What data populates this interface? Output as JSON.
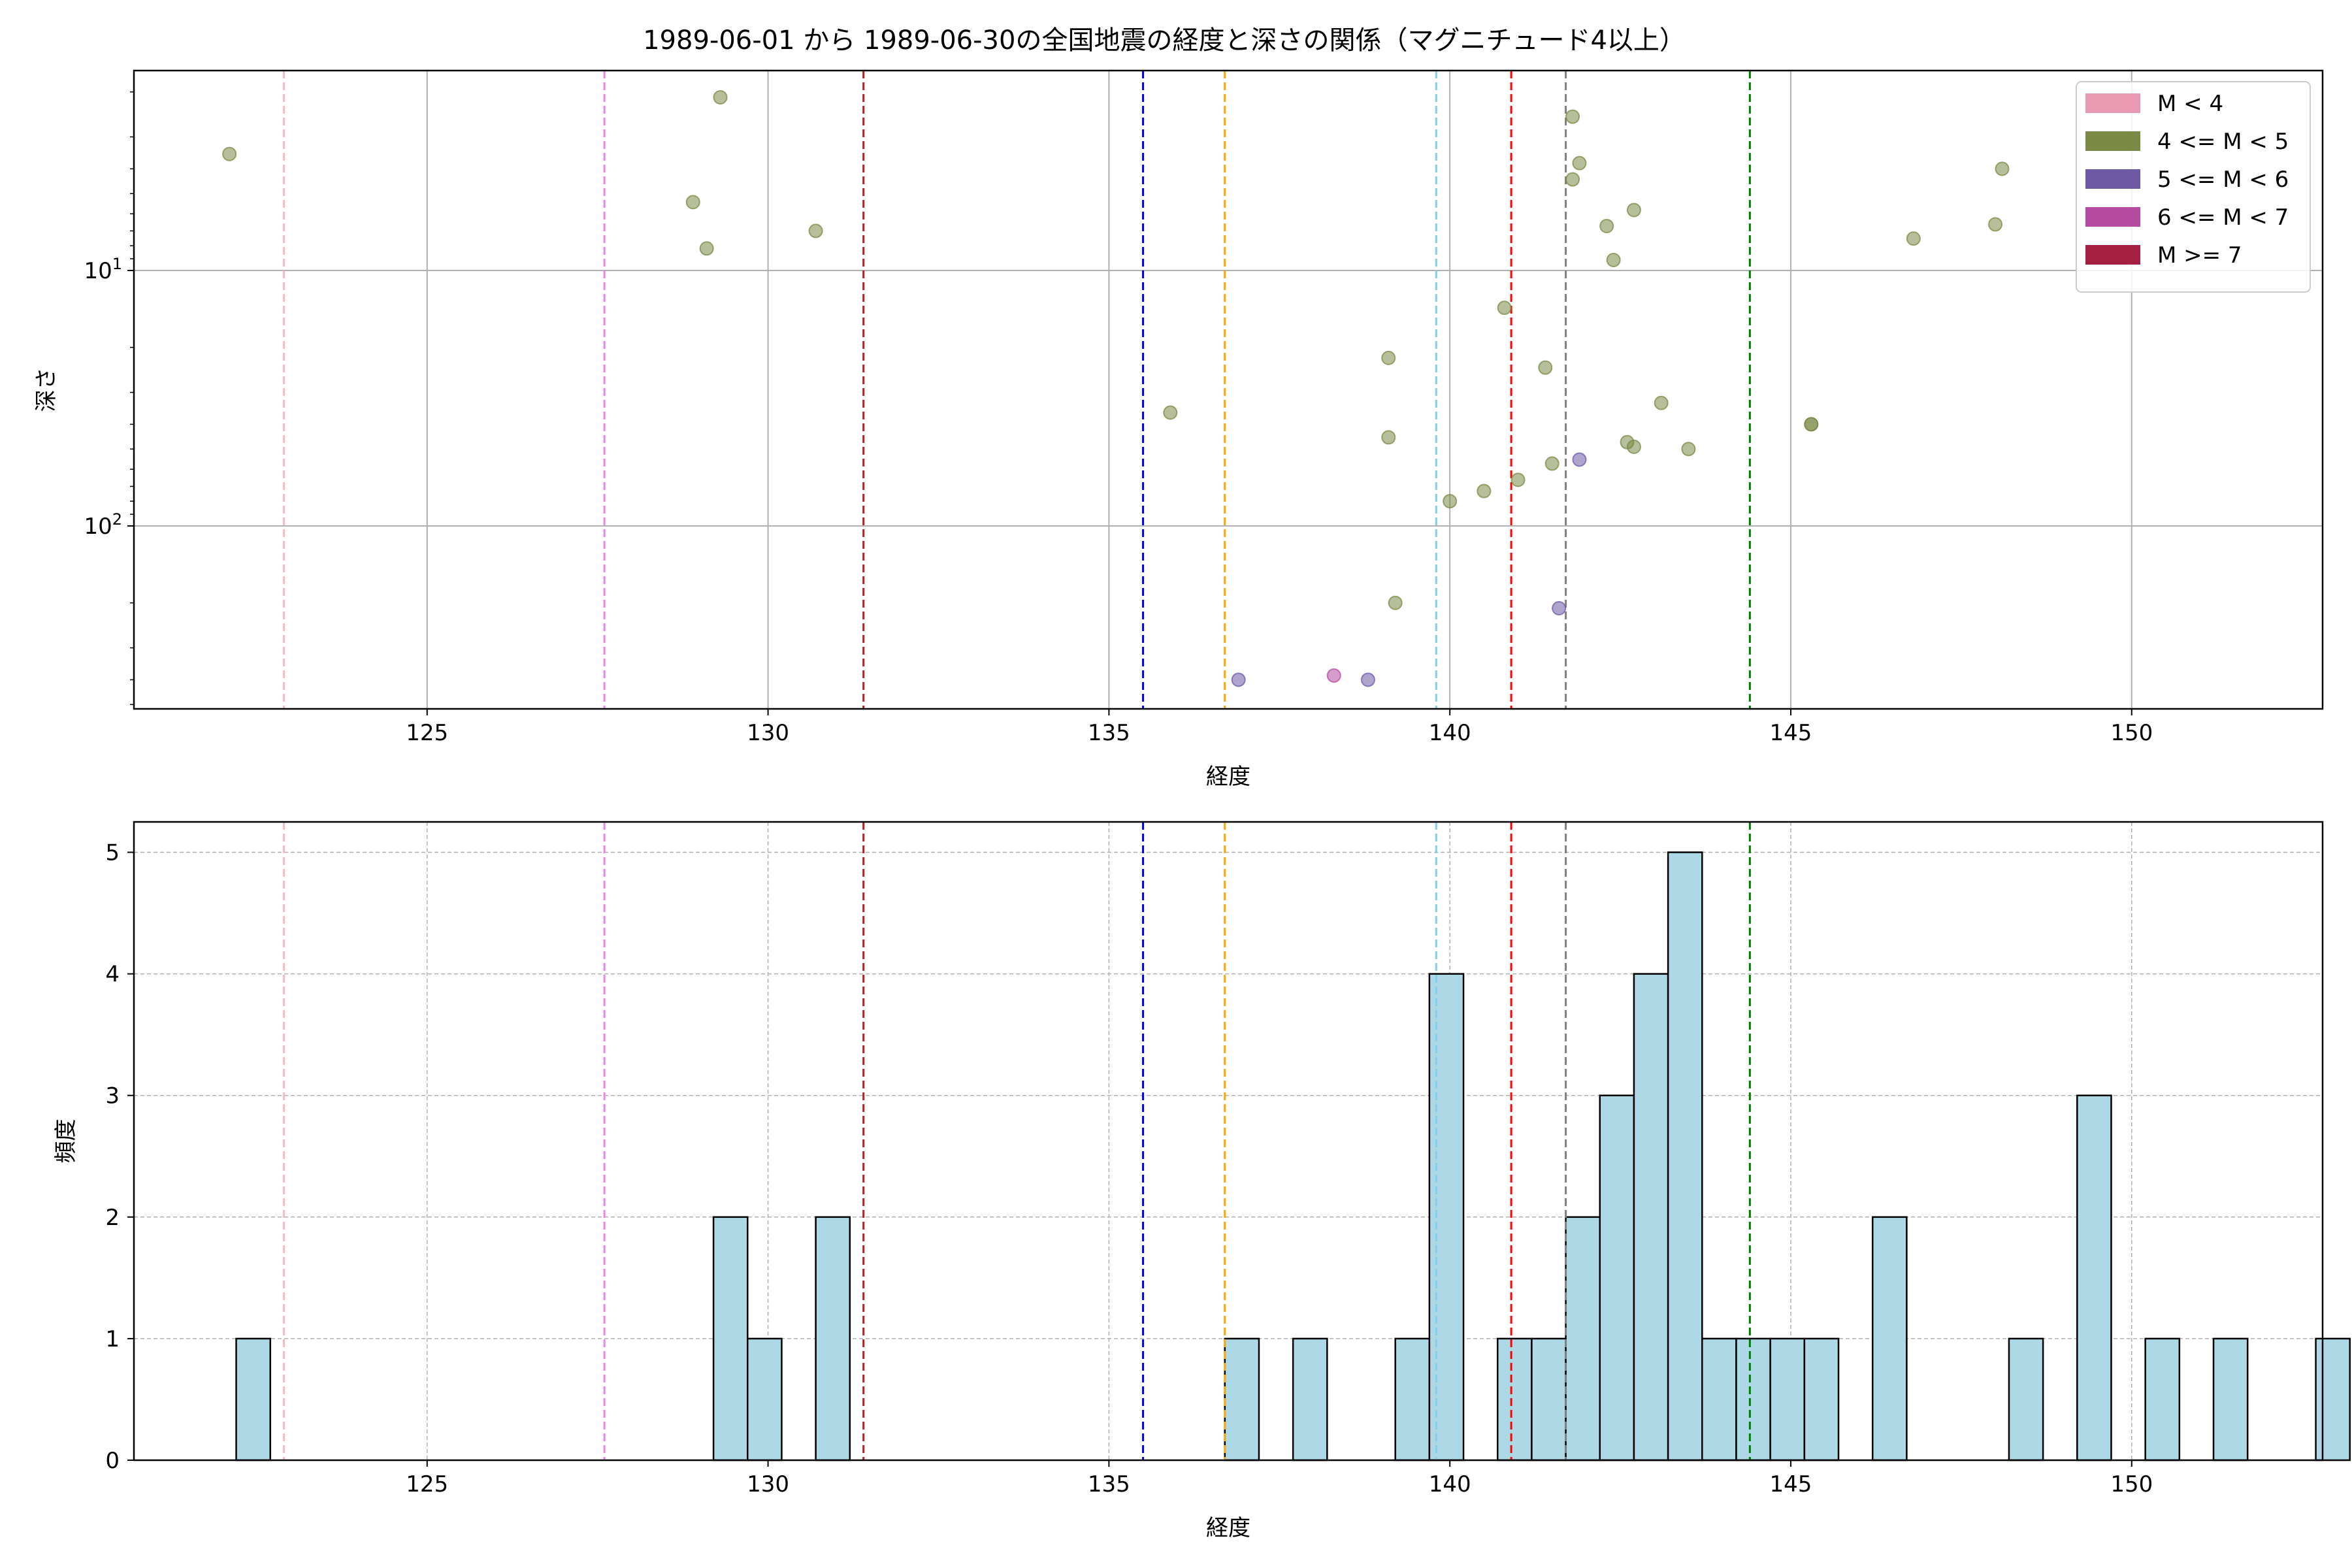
{
  "figure": {
    "title": "1989-06-01 から 1989-06-30の全国地震の経度と深さの関係（マグニチュード4以上）"
  },
  "chart_data": [
    {
      "type": "scatter",
      "xlabel": "経度",
      "ylabel": "深さ",
      "xlim": [
        120.7,
        152.8
      ],
      "ylim": [
        520,
        1.65
      ],
      "y_scale": "log",
      "y_inverted": true,
      "grid": true,
      "xticks": [
        125,
        130,
        135,
        140,
        145,
        150
      ],
      "yticks": [
        {
          "value": 10,
          "base": "10",
          "exp": "1"
        },
        {
          "value": 100,
          "base": "10",
          "exp": "2"
        }
      ],
      "legend": {
        "placement": "top-right",
        "entries": [
          {
            "label": "M < 4",
            "color": "#e89ab2"
          },
          {
            "label": "4 <= M < 5",
            "color": "#7a8a45"
          },
          {
            "label": "5 <= M < 6",
            "color": "#6e5aa4"
          },
          {
            "label": "6 <= M < 7",
            "color": "#b54ba0"
          },
          {
            "label": "M >= 7",
            "color": "#a32042"
          }
        ]
      },
      "vlines": [
        {
          "x": 122.9,
          "color": "#ffb6c1"
        },
        {
          "x": 127.6,
          "color": "#ee82ee"
        },
        {
          "x": 131.4,
          "color": "#b22222"
        },
        {
          "x": 135.5,
          "color": "#0000ff"
        },
        {
          "x": 136.7,
          "color": "#ffa500"
        },
        {
          "x": 139.8,
          "color": "#87ceeb"
        },
        {
          "x": 140.9,
          "color": "#ff0000"
        },
        {
          "x": 141.7,
          "color": "#808080"
        },
        {
          "x": 144.4,
          "color": "#008000"
        }
      ],
      "series": [
        {
          "name": "4 <= M < 5",
          "color": "#7a8a45",
          "points": [
            {
              "x": 122.1,
              "y": 3.5
            },
            {
              "x": 128.9,
              "y": 5.4
            },
            {
              "x": 129.1,
              "y": 8.2
            },
            {
              "x": 129.3,
              "y": 2.1
            },
            {
              "x": 130.7,
              "y": 7.0
            },
            {
              "x": 135.9,
              "y": 36
            },
            {
              "x": 139.1,
              "y": 22
            },
            {
              "x": 139.1,
              "y": 45
            },
            {
              "x": 139.2,
              "y": 200
            },
            {
              "x": 140.0,
              "y": 80
            },
            {
              "x": 140.5,
              "y": 73
            },
            {
              "x": 140.8,
              "y": 14
            },
            {
              "x": 141.0,
              "y": 66
            },
            {
              "x": 141.4,
              "y": 24
            },
            {
              "x": 141.5,
              "y": 57
            },
            {
              "x": 141.8,
              "y": 2.5
            },
            {
              "x": 141.8,
              "y": 4.4
            },
            {
              "x": 141.9,
              "y": 3.8
            },
            {
              "x": 142.3,
              "y": 6.7
            },
            {
              "x": 142.4,
              "y": 9.1
            },
            {
              "x": 142.6,
              "y": 47
            },
            {
              "x": 142.7,
              "y": 49
            },
            {
              "x": 142.7,
              "y": 5.8
            },
            {
              "x": 143.1,
              "y": 33
            },
            {
              "x": 143.5,
              "y": 50
            },
            {
              "x": 145.3,
              "y": 40
            },
            {
              "x": 145.3,
              "y": 40
            },
            {
              "x": 146.8,
              "y": 7.5
            },
            {
              "x": 148.0,
              "y": 6.6
            },
            {
              "x": 148.1,
              "y": 4.0
            }
          ]
        },
        {
          "name": "5 <= M < 6",
          "color": "#6e5aa4",
          "points": [
            {
              "x": 136.9,
              "y": 400
            },
            {
              "x": 138.8,
              "y": 400
            },
            {
              "x": 141.6,
              "y": 210
            },
            {
              "x": 141.9,
              "y": 55
            }
          ]
        },
        {
          "name": "6 <= M < 7",
          "color": "#b54ba0",
          "points": [
            {
              "x": 138.3,
              "y": 385
            }
          ]
        }
      ]
    },
    {
      "type": "bar",
      "xlabel": "経度",
      "ylabel": "頻度",
      "xlim": [
        120.7,
        152.8
      ],
      "ylim": [
        0,
        5.25
      ],
      "grid": true,
      "xticks": [
        125,
        130,
        135,
        140,
        145,
        150
      ],
      "yticks": [
        0,
        1,
        2,
        3,
        4,
        5
      ],
      "bar_color": "#add8e6",
      "bin_start": 122.2,
      "bin_width": 0.5,
      "counts": [
        1,
        0,
        0,
        0,
        0,
        0,
        0,
        0,
        0,
        0,
        0,
        0,
        0,
        0,
        2,
        1,
        0,
        2,
        0,
        0,
        0,
        0,
        0,
        0,
        0,
        0,
        0,
        0,
        0,
        1,
        0,
        1,
        0,
        0,
        1,
        4,
        0,
        1,
        1,
        2,
        3,
        4,
        5,
        1,
        1,
        1,
        1,
        0,
        2,
        0,
        0,
        0,
        1,
        0,
        3,
        0,
        1,
        0,
        1,
        0,
        0,
        1
      ],
      "vlines": [
        {
          "x": 122.9,
          "color": "#ffb6c1"
        },
        {
          "x": 127.6,
          "color": "#ee82ee"
        },
        {
          "x": 131.4,
          "color": "#b22222"
        },
        {
          "x": 135.5,
          "color": "#0000ff"
        },
        {
          "x": 136.7,
          "color": "#ffa500"
        },
        {
          "x": 139.8,
          "color": "#87ceeb"
        },
        {
          "x": 140.9,
          "color": "#ff0000"
        },
        {
          "x": 141.7,
          "color": "#808080"
        },
        {
          "x": 144.4,
          "color": "#008000"
        }
      ]
    }
  ]
}
